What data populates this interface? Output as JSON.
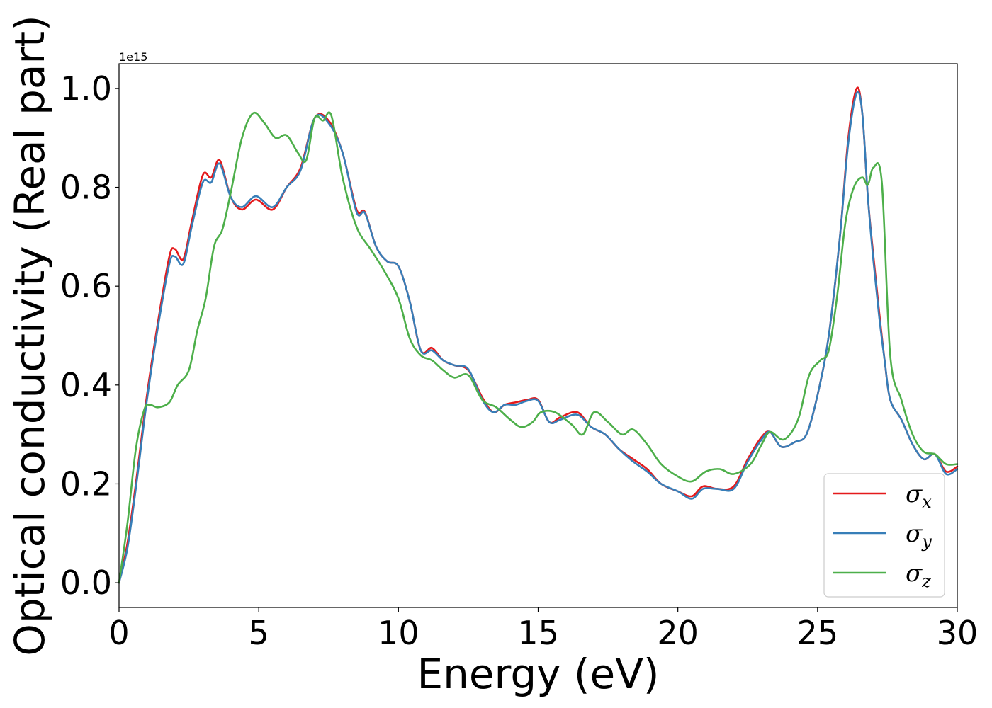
{
  "chart_data": {
    "type": "line",
    "title": "",
    "xlabel": "Energy (eV)",
    "ylabel": "Optical conductivity (Real part)",
    "y_offset_label": "1e15",
    "xlim": [
      0,
      30
    ],
    "ylim": [
      -0.05,
      1.05
    ],
    "x_ticks": [
      0,
      5,
      10,
      15,
      20,
      25,
      30
    ],
    "x_tick_labels": [
      "0",
      "5",
      "10",
      "15",
      "20",
      "25",
      "30"
    ],
    "y_ticks": [
      0.0,
      0.2,
      0.4,
      0.6,
      0.8,
      1.0
    ],
    "y_tick_labels": [
      "0.0",
      "0.2",
      "0.4",
      "0.6",
      "0.8",
      "1.0"
    ],
    "grid": false,
    "legend_position": "bottom-right",
    "series": [
      {
        "name": "σ",
        "subscript": "x",
        "color": "#e41a1c",
        "x": [
          0,
          0.3,
          0.6,
          1.0,
          1.4,
          1.8,
          2.0,
          2.3,
          2.6,
          3.0,
          3.3,
          3.6,
          4.0,
          4.4,
          4.9,
          5.5,
          6.0,
          6.5,
          7.0,
          7.5,
          8.0,
          8.5,
          8.8,
          9.2,
          9.6,
          10.0,
          10.4,
          10.8,
          11.2,
          11.6,
          12.0,
          12.5,
          13.0,
          13.4,
          13.8,
          14.2,
          14.6,
          15.0,
          15.4,
          15.8,
          16.4,
          16.9,
          17.4,
          17.9,
          18.4,
          18.9,
          19.4,
          20.0,
          20.5,
          20.9,
          21.4,
          22.0,
          22.5,
          23.0,
          23.3,
          23.7,
          24.2,
          24.6,
          25.0,
          25.4,
          25.8,
          26.1,
          26.4,
          26.6,
          26.8,
          27.0,
          27.2,
          27.4,
          27.6,
          28.0,
          28.4,
          28.8,
          29.2,
          29.6,
          30.0
        ],
        "y": [
          0.0,
          0.08,
          0.2,
          0.38,
          0.53,
          0.66,
          0.675,
          0.655,
          0.73,
          0.825,
          0.82,
          0.855,
          0.78,
          0.755,
          0.775,
          0.755,
          0.8,
          0.84,
          0.94,
          0.935,
          0.87,
          0.755,
          0.75,
          0.68,
          0.65,
          0.64,
          0.57,
          0.47,
          0.475,
          0.45,
          0.44,
          0.43,
          0.375,
          0.345,
          0.36,
          0.365,
          0.37,
          0.37,
          0.325,
          0.335,
          0.345,
          0.315,
          0.3,
          0.27,
          0.25,
          0.23,
          0.2,
          0.185,
          0.175,
          0.195,
          0.19,
          0.195,
          0.25,
          0.295,
          0.305,
          0.275,
          0.285,
          0.3,
          0.38,
          0.5,
          0.7,
          0.9,
          1.0,
          0.95,
          0.78,
          0.66,
          0.55,
          0.45,
          0.37,
          0.33,
          0.28,
          0.25,
          0.26,
          0.225,
          0.235
        ]
      },
      {
        "name": "σ",
        "subscript": "y",
        "color": "#377eb8",
        "x": [
          0,
          0.3,
          0.6,
          1.0,
          1.4,
          1.8,
          2.0,
          2.3,
          2.6,
          3.0,
          3.3,
          3.6,
          4.0,
          4.4,
          4.9,
          5.5,
          6.0,
          6.5,
          7.0,
          7.5,
          8.0,
          8.5,
          8.8,
          9.2,
          9.6,
          10.0,
          10.4,
          10.8,
          11.2,
          11.6,
          12.0,
          12.5,
          13.0,
          13.4,
          13.8,
          14.2,
          14.6,
          15.0,
          15.4,
          15.8,
          16.4,
          16.9,
          17.4,
          17.9,
          18.4,
          18.9,
          19.4,
          20.0,
          20.5,
          20.9,
          21.4,
          22.0,
          22.5,
          23.0,
          23.3,
          23.7,
          24.2,
          24.6,
          25.0,
          25.4,
          25.8,
          26.1,
          26.4,
          26.6,
          26.8,
          27.0,
          27.2,
          27.4,
          27.6,
          28.0,
          28.4,
          28.8,
          29.2,
          29.6,
          30.0
        ],
        "y": [
          0.0,
          0.07,
          0.19,
          0.37,
          0.52,
          0.645,
          0.66,
          0.645,
          0.72,
          0.81,
          0.81,
          0.848,
          0.78,
          0.76,
          0.782,
          0.76,
          0.8,
          0.835,
          0.94,
          0.93,
          0.87,
          0.75,
          0.748,
          0.68,
          0.65,
          0.64,
          0.57,
          0.47,
          0.47,
          0.45,
          0.44,
          0.432,
          0.37,
          0.345,
          0.36,
          0.36,
          0.368,
          0.368,
          0.325,
          0.33,
          0.34,
          0.315,
          0.3,
          0.27,
          0.245,
          0.225,
          0.2,
          0.185,
          0.17,
          0.19,
          0.19,
          0.19,
          0.245,
          0.29,
          0.305,
          0.275,
          0.285,
          0.3,
          0.38,
          0.5,
          0.7,
          0.89,
          0.99,
          0.95,
          0.78,
          0.65,
          0.54,
          0.45,
          0.37,
          0.33,
          0.28,
          0.25,
          0.26,
          0.22,
          0.23
        ]
      },
      {
        "name": "σ",
        "subscript": "z",
        "color": "#4daf4a",
        "x": [
          0,
          0.3,
          0.6,
          0.9,
          1.1,
          1.4,
          1.8,
          2.1,
          2.5,
          2.8,
          3.1,
          3.4,
          3.7,
          4.0,
          4.4,
          4.8,
          5.2,
          5.6,
          6.0,
          6.4,
          6.7,
          7.0,
          7.3,
          7.6,
          8.0,
          8.5,
          9.0,
          9.5,
          10.0,
          10.4,
          10.8,
          11.2,
          11.6,
          12.0,
          12.5,
          13.0,
          13.5,
          14.0,
          14.4,
          14.8,
          15.1,
          15.6,
          16.2,
          16.6,
          17.0,
          17.5,
          18.0,
          18.4,
          18.9,
          19.4,
          20.0,
          20.5,
          21.0,
          21.5,
          22.0,
          22.6,
          23.0,
          23.3,
          23.8,
          24.3,
          24.7,
          25.1,
          25.4,
          25.7,
          26.0,
          26.3,
          26.6,
          26.8,
          27.0,
          27.3,
          27.6,
          28.0,
          28.4,
          28.8,
          29.2,
          29.6,
          30.0
        ],
        "y": [
          0.0,
          0.12,
          0.27,
          0.35,
          0.36,
          0.355,
          0.365,
          0.4,
          0.43,
          0.51,
          0.575,
          0.68,
          0.715,
          0.79,
          0.9,
          0.95,
          0.93,
          0.9,
          0.905,
          0.87,
          0.855,
          0.94,
          0.935,
          0.945,
          0.82,
          0.72,
          0.675,
          0.63,
          0.575,
          0.495,
          0.46,
          0.45,
          0.43,
          0.415,
          0.42,
          0.37,
          0.355,
          0.33,
          0.315,
          0.325,
          0.345,
          0.345,
          0.32,
          0.3,
          0.345,
          0.325,
          0.3,
          0.31,
          0.28,
          0.24,
          0.215,
          0.205,
          0.225,
          0.23,
          0.22,
          0.24,
          0.28,
          0.305,
          0.29,
          0.33,
          0.42,
          0.45,
          0.47,
          0.58,
          0.73,
          0.8,
          0.82,
          0.805,
          0.84,
          0.81,
          0.46,
          0.37,
          0.3,
          0.265,
          0.26,
          0.24,
          0.24
        ]
      }
    ]
  }
}
